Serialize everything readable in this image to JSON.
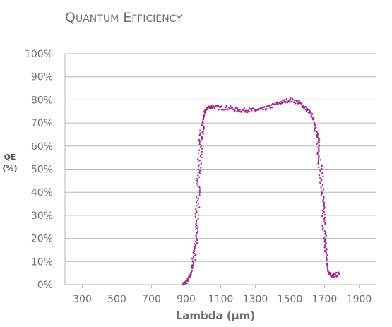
{
  "chart_data": {
    "type": "scatter",
    "title": "Quantum Efficiency",
    "xlabel": "Lambda (µm)",
    "ylabel": [
      "QE",
      "(%)"
    ],
    "x_ticks": [
      "300",
      "500",
      "700",
      "900",
      "1100",
      "1300",
      "1500",
      "1700",
      "1900"
    ],
    "y_ticks": [
      "0%",
      "10%",
      "20%",
      "30%",
      "40%",
      "50%",
      "60%",
      "70%",
      "80%",
      "90%",
      "100%"
    ],
    "xlim": [
      200,
      2000
    ],
    "ylim": [
      0,
      100
    ],
    "grid": "horizontal",
    "series": [
      {
        "color": "#9b2c8f",
        "points": [
          [
            880,
            0
          ],
          [
            900,
            1
          ],
          [
            920,
            3
          ],
          [
            940,
            8
          ],
          [
            955,
            18
          ],
          [
            965,
            32
          ],
          [
            975,
            48
          ],
          [
            985,
            62
          ],
          [
            995,
            70
          ],
          [
            1005,
            74
          ],
          [
            1020,
            76.5
          ],
          [
            1050,
            77
          ],
          [
            1100,
            76.5
          ],
          [
            1150,
            76.5
          ],
          [
            1200,
            75.5
          ],
          [
            1250,
            75.5
          ],
          [
            1300,
            75.5
          ],
          [
            1350,
            76
          ],
          [
            1400,
            77.5
          ],
          [
            1450,
            79
          ],
          [
            1500,
            80
          ],
          [
            1550,
            79
          ],
          [
            1580,
            77
          ],
          [
            1610,
            75
          ],
          [
            1630,
            73
          ],
          [
            1650,
            68
          ],
          [
            1665,
            60
          ],
          [
            1680,
            48
          ],
          [
            1690,
            35
          ],
          [
            1700,
            22
          ],
          [
            1710,
            12
          ],
          [
            1720,
            6
          ],
          [
            1740,
            4
          ],
          [
            1760,
            4
          ],
          [
            1790,
            5
          ]
        ]
      }
    ]
  }
}
